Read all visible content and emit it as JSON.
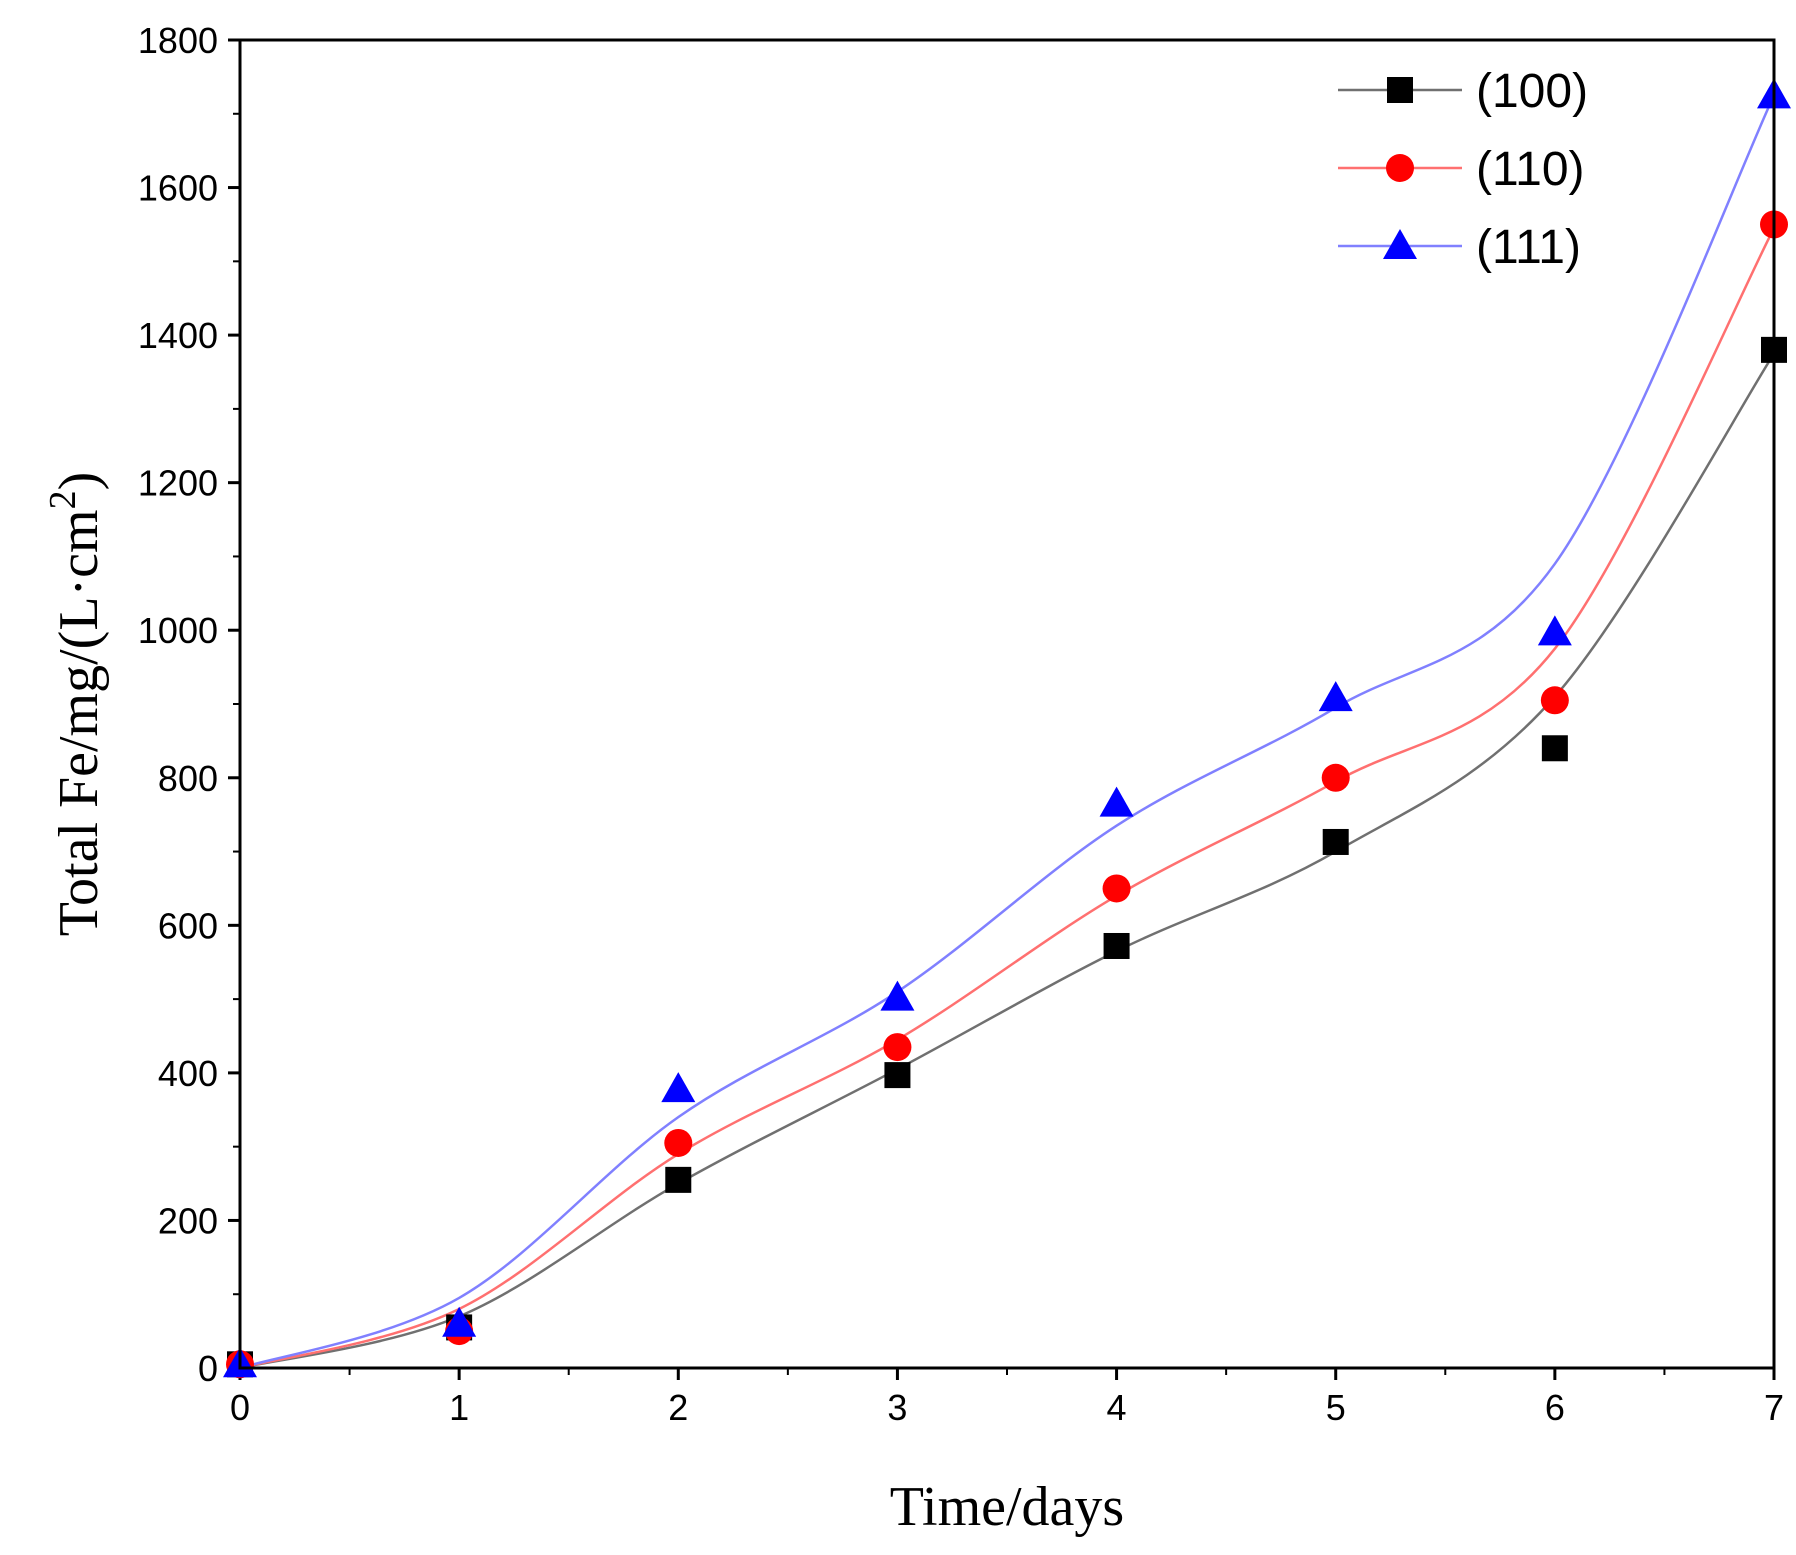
{
  "chart_data": {
    "type": "scatter",
    "title": "",
    "xlabel": "Time/days",
    "ylabel": "Total Fe/mg/(L·cm",
    "ylabel_superscript": "2",
    "ylabel_close": ")",
    "xlim": [
      0,
      7
    ],
    "ylim": [
      0,
      1800
    ],
    "x_ticks": [
      "0",
      "1",
      "2",
      "3",
      "4",
      "5",
      "6",
      "7"
    ],
    "y_ticks": [
      "0",
      "200",
      "400",
      "600",
      "800",
      "1000",
      "1200",
      "1400",
      "1600",
      "1800"
    ],
    "grid": false,
    "legend_position": "top-right",
    "x": [
      0,
      1,
      2,
      3,
      4,
      5,
      6,
      7
    ],
    "series": [
      {
        "name": "(100)",
        "marker": "square",
        "marker_color": "#000000",
        "line_color": "#707070",
        "values": [
          5,
          55,
          255,
          397,
          572,
          713,
          840,
          1380
        ],
        "fit": [
          0,
          70,
          250,
          405,
          565,
          700,
          910,
          1375
        ]
      },
      {
        "name": "(110)",
        "marker": "circle",
        "marker_color": "#ff0000",
        "line_color": "#ff7070",
        "values": [
          5,
          50,
          305,
          435,
          650,
          800,
          905,
          1550
        ],
        "fit": [
          0,
          80,
          290,
          445,
          640,
          795,
          975,
          1545
        ]
      },
      {
        "name": "(111)",
        "marker": "triangle",
        "marker_color": "#0000ff",
        "line_color": "#8080ff",
        "values": [
          5,
          60,
          378,
          502,
          765,
          908,
          997,
          1725
        ],
        "fit": [
          0,
          95,
          340,
          510,
          735,
          895,
          1090,
          1725
        ]
      }
    ]
  }
}
